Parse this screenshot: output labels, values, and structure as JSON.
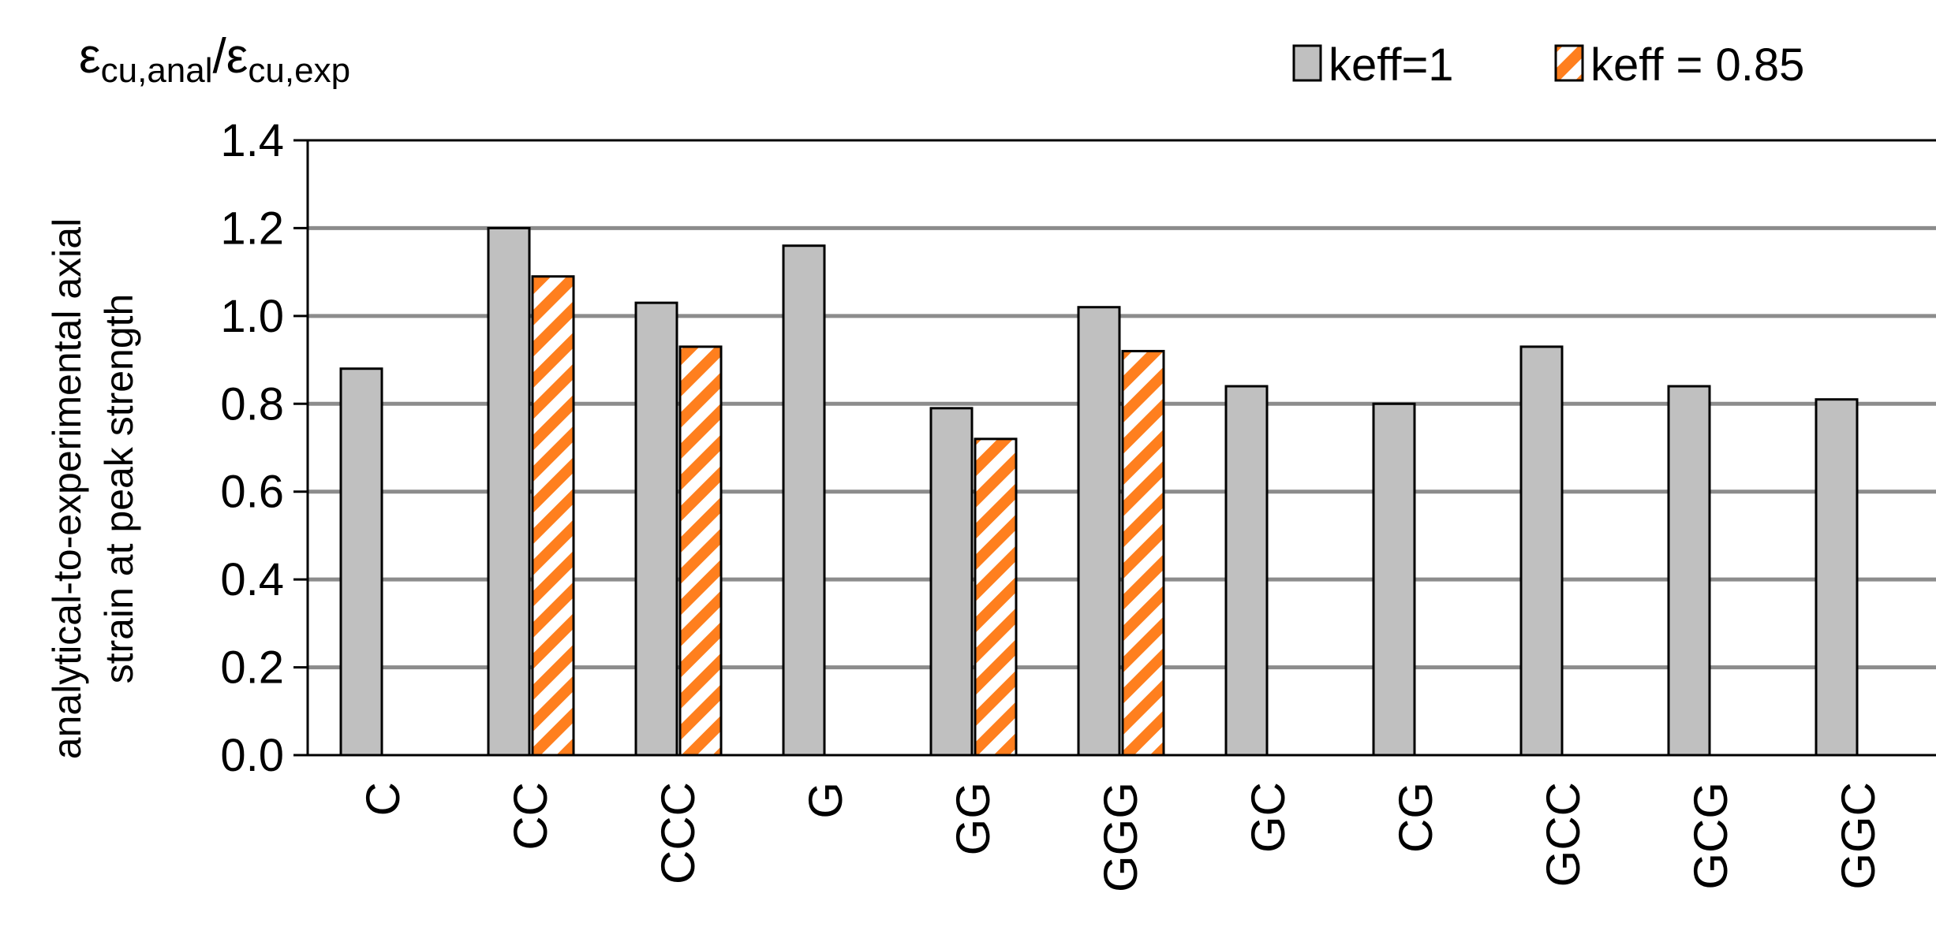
{
  "chart_data": {
    "type": "bar",
    "title": "",
    "top_label": {
      "base": "ε",
      "sub1": "cu,anal",
      "slash": "/",
      "base2": "ε",
      "sub2": "cu,exp"
    },
    "ylabel_line1": "analytical-to-experimental axial",
    "ylabel_line2": "strain at peak strength",
    "xlabel": "",
    "ylim": [
      0,
      1.4
    ],
    "yticks": [
      "0.0",
      "0.2",
      "0.4",
      "0.6",
      "0.8",
      "1.0",
      "1.2",
      "1.4"
    ],
    "grid": true,
    "legend_position": "top-right",
    "categories": [
      "C",
      "CC",
      "CCC",
      "G",
      "GG",
      "GGG",
      "GC",
      "CG",
      "GCC",
      "GCG",
      "GGC"
    ],
    "series": [
      {
        "name": "keff=1",
        "color": "#c0c0c0",
        "pattern": "solid",
        "values": [
          0.88,
          1.2,
          1.03,
          1.16,
          0.79,
          1.02,
          0.84,
          0.8,
          0.93,
          0.84,
          0.81
        ]
      },
      {
        "name": "keff = 0.85",
        "color": "#ff7f1e",
        "pattern": "diagonal-stripes",
        "values": [
          null,
          1.09,
          0.93,
          null,
          0.72,
          0.92,
          null,
          null,
          null,
          null,
          null
        ]
      }
    ]
  }
}
